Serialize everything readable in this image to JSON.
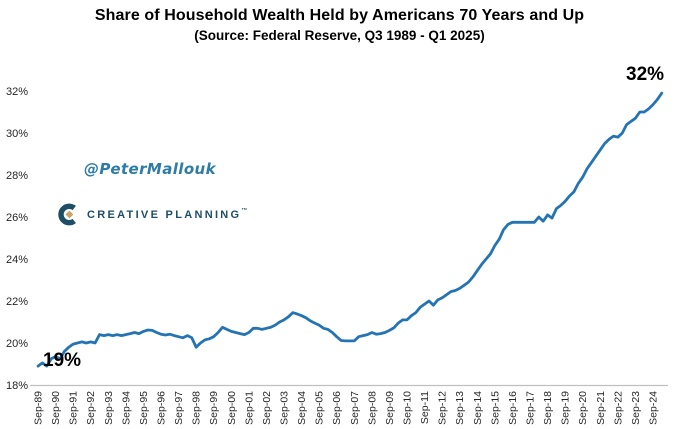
{
  "header": {
    "title": "Share of Household Wealth Held by Americans 70 Years and Up",
    "subtitle": "(Source: Federal Reserve, Q3 1989 - Q1 2025)"
  },
  "watermarks": {
    "handle": "@PeterMallouk",
    "brand": "CREATIVE PLANNING",
    "brand_trademark": "™",
    "handle_color": "#2E7BA6",
    "brand_color": "#1D4E66",
    "brand_gold": "#C7A566"
  },
  "annotations": {
    "start_label": "19%",
    "end_label": "32%"
  },
  "chart_data": {
    "type": "line",
    "title": "Share of Household Wealth Held by Americans 70 Years and Up",
    "subtitle": "(Source: Federal Reserve, Q3 1989 - Q1 2025)",
    "frequency": "quarterly",
    "x_start": "1989-Q3",
    "x_end": "2025-Q1",
    "x_tick_labels": [
      "Sep-89",
      "Sep-90",
      "Sep-91",
      "Sep-92",
      "Sep-93",
      "Sep-94",
      "Sep-95",
      "Sep-96",
      "Sep-97",
      "Sep-98",
      "Sep-99",
      "Sep-00",
      "Sep-01",
      "Sep-02",
      "Sep-03",
      "Sep-04",
      "Sep-05",
      "Sep-06",
      "Sep-07",
      "Sep-08",
      "Sep-09",
      "Sep-10",
      "Sep-11",
      "Sep-12",
      "Sep-13",
      "Sep-14",
      "Sep-15",
      "Sep-16",
      "Sep-17",
      "Sep-18",
      "Sep-19",
      "Sep-20",
      "Sep-21",
      "Sep-22",
      "Sep-23",
      "Sep-24"
    ],
    "y_ticks": [
      18,
      20,
      22,
      24,
      26,
      28,
      30,
      32
    ],
    "y_tick_labels": [
      "18%",
      "20%",
      "22%",
      "24%",
      "26%",
      "28%",
      "30%",
      "32%"
    ],
    "ylim": [
      18,
      32
    ],
    "grid": false,
    "legend": "none",
    "line_color": "#2474B4",
    "axis_color": "#C0C0C0",
    "tick_label_color": "#262626",
    "values": [
      18.9,
      19.05,
      18.9,
      19.25,
      19.35,
      19.25,
      19.6,
      19.8,
      19.95,
      20.0,
      20.05,
      20.0,
      20.05,
      20.0,
      20.4,
      20.35,
      20.4,
      20.35,
      20.4,
      20.35,
      20.4,
      20.45,
      20.5,
      20.45,
      20.55,
      20.62,
      20.6,
      20.5,
      20.42,
      20.38,
      20.42,
      20.35,
      20.3,
      20.25,
      20.35,
      20.25,
      19.8,
      20.0,
      20.15,
      20.2,
      20.3,
      20.5,
      20.75,
      20.65,
      20.55,
      20.5,
      20.45,
      20.4,
      20.5,
      20.7,
      20.7,
      20.65,
      20.7,
      20.75,
      20.85,
      21.0,
      21.1,
      21.25,
      21.45,
      21.38,
      21.3,
      21.2,
      21.05,
      20.95,
      20.85,
      20.7,
      20.65,
      20.5,
      20.3,
      20.12,
      20.1,
      20.1,
      20.1,
      20.3,
      20.35,
      20.4,
      20.5,
      20.42,
      20.45,
      20.5,
      20.6,
      20.72,
      20.95,
      21.1,
      21.1,
      21.3,
      21.45,
      21.7,
      21.85,
      22.0,
      21.8,
      22.05,
      22.15,
      22.3,
      22.45,
      22.5,
      22.6,
      22.75,
      22.9,
      23.15,
      23.45,
      23.75,
      24.0,
      24.25,
      24.65,
      24.95,
      25.4,
      25.65,
      25.75,
      25.75,
      25.75,
      25.75,
      25.75,
      25.75,
      26.0,
      25.8,
      26.1,
      25.95,
      26.4,
      26.55,
      26.75,
      27.0,
      27.2,
      27.6,
      27.9,
      28.3,
      28.6,
      28.9,
      29.2,
      29.5,
      29.7,
      29.85,
      29.8,
      30.0,
      30.4,
      30.55,
      30.7,
      31.0,
      31.0,
      31.15,
      31.35,
      31.6,
      31.9
    ]
  }
}
